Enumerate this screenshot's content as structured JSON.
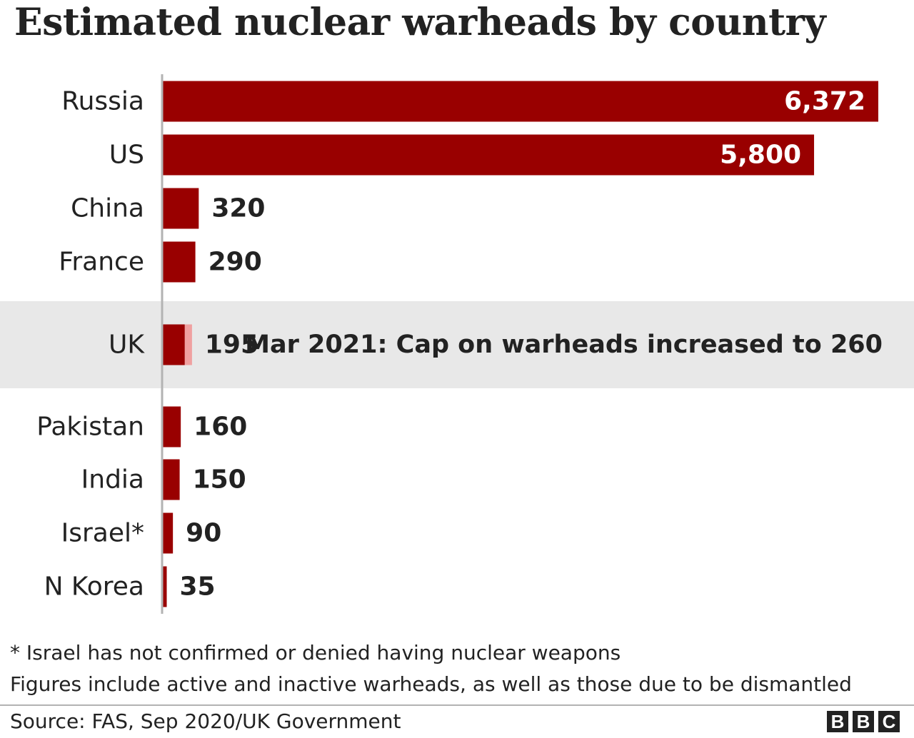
{
  "chart_data": {
    "type": "bar",
    "orientation": "horizontal",
    "title": "Estimated nuclear warheads by country",
    "categories": [
      "Russia",
      "US",
      "China",
      "France",
      "UK",
      "Pakistan",
      "India",
      "Israel*",
      "N Korea"
    ],
    "values": [
      6372,
      5800,
      320,
      290,
      195,
      160,
      150,
      90,
      35
    ],
    "value_labels": [
      "6,372",
      "5,800",
      "320",
      "290",
      "195",
      "160",
      "150",
      "90",
      "35"
    ],
    "highlight": {
      "category": "UK",
      "cap_value": 260,
      "annotation": "Mar 2021: Cap on warheads increased to 260"
    },
    "xlim": [
      0,
      6372
    ],
    "grid": false,
    "legend": "none",
    "colors": {
      "bar": "#990000",
      "cap_extension": "#f0a0a0",
      "highlight_band": "#e8e8e8",
      "axis": "#b3b3b3",
      "inside_label": "#ffffff",
      "outside_label": "#222222"
    }
  },
  "footnotes": [
    "* Israel has not confirmed or denied having nuclear weapons",
    "Figures include active and inactive warheads, as well as those due to be dismantled"
  ],
  "source": "Source: FAS, Sep 2020/UK Government",
  "logo": {
    "letters": [
      "B",
      "B",
      "C"
    ]
  }
}
